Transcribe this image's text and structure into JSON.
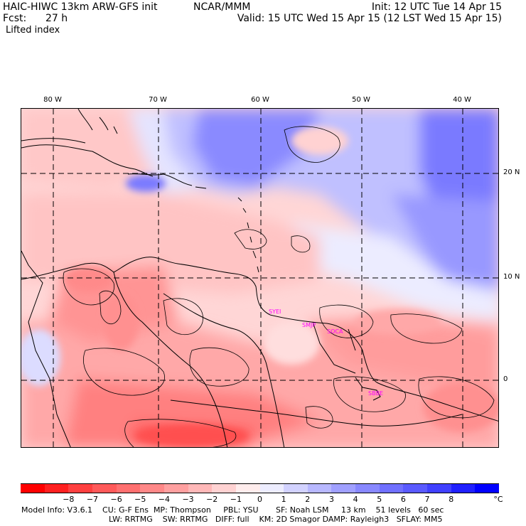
{
  "header": {
    "title": "HAIC-HIWC 13km ARW-GFS init",
    "org": "NCAR/MMM",
    "init": "Init: 12 UTC Tue 14 Apr 15",
    "fcst_label": "Fcst:",
    "fcst_value": "27 h",
    "valid": "Valid: 15 UTC Wed 15 Apr 15 (12 LST Wed 15 Apr 15)",
    "field": "Lifted index"
  },
  "longitudes": [
    "80 W",
    "70 W",
    "60 W",
    "50 W",
    "40 W"
  ],
  "latitudes": [
    "20 N",
    "10 N",
    "0"
  ],
  "stations": [
    "SYEI",
    "SMJP",
    "SOCA",
    "SBBE"
  ],
  "colorbar": {
    "labels": [
      "−8",
      "−7",
      "−6",
      "−5",
      "−4",
      "−3",
      "−2",
      "−1",
      "0",
      "1",
      "2",
      "3",
      "4",
      "5",
      "6",
      "7",
      "8"
    ],
    "unit": "°C",
    "colors": [
      "#ff0000",
      "#ff2020",
      "#ff4040",
      "#ff5a5a",
      "#ff7070",
      "#ff8888",
      "#ffa0a0",
      "#ffb8b8",
      "#ffd2d2",
      "#ffeded",
      "#ededff",
      "#d2d2ff",
      "#b8b8ff",
      "#a0a0ff",
      "#8888ff",
      "#7070ff",
      "#5a5aff",
      "#4040ff",
      "#2020ff",
      "#0000ff"
    ]
  },
  "model_info": {
    "line1": "Model Info: V3.6.1    CU: G-F Ens  MP: Thompson     PBL: YSU       SF: Noah LSM     13 km    51 levels   60 sec",
    "line2": "LW: RRTMG    SW: RRTMG   DIFF: full    KM: 2D Smagor DAMP: Rayleigh3   SFLAY: MM5"
  }
}
